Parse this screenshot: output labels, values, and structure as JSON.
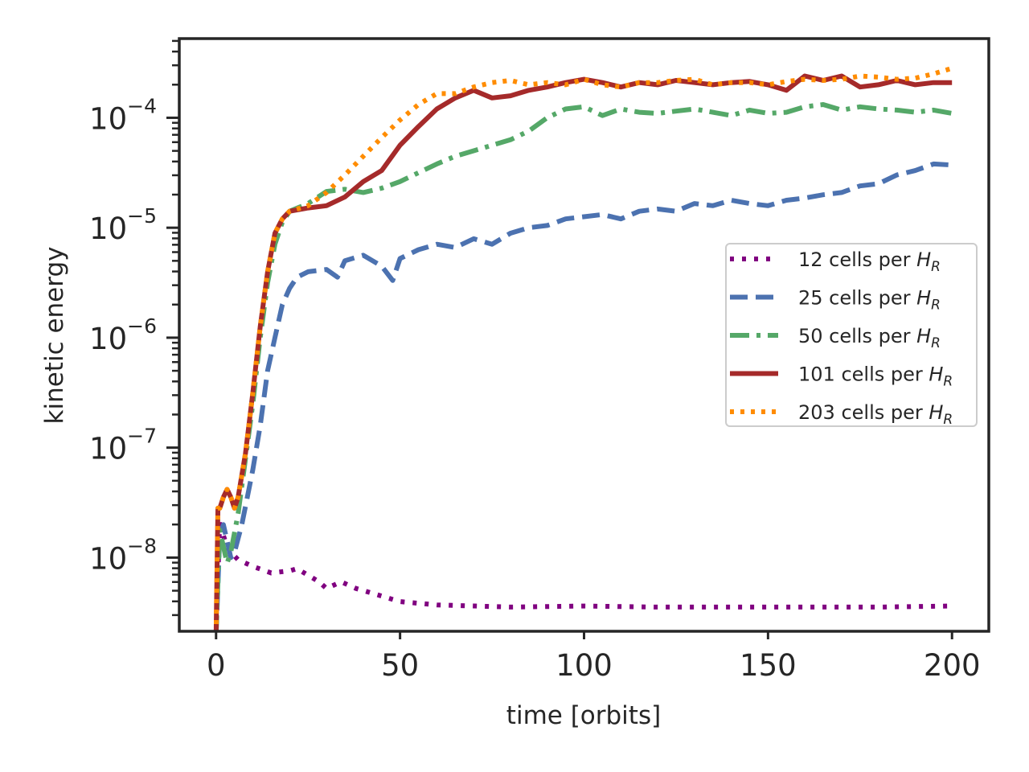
{
  "chart_data": {
    "type": "line",
    "title": "",
    "xlabel": "time [orbits]",
    "ylabel": "kinetic energy",
    "xlim": [
      -10,
      210
    ],
    "ylim_log10": [
      -8.67,
      -3.28
    ],
    "y_scale": "log",
    "grid": false,
    "legend_position": "center-right",
    "x_ticks": [
      0,
      50,
      100,
      150,
      200
    ],
    "x_tick_labels": [
      "0",
      "50",
      "100",
      "150",
      "200"
    ],
    "y_ticks_log10": [
      -8,
      -7,
      -6,
      -5,
      -4
    ],
    "y_tick_base": "10",
    "y_tick_exponents": [
      "−8",
      "−7",
      "−6",
      "−5",
      "−4"
    ],
    "series": [
      {
        "name": "12 cells per",
        "name_symbol": "H",
        "name_sub": "R",
        "color": "#800080",
        "style": "dotted-sparse",
        "points": [
          [
            0,
            -8.7
          ],
          [
            1,
            -7.65
          ],
          [
            2,
            -7.8
          ],
          [
            3,
            -7.9
          ],
          [
            4,
            -7.95
          ],
          [
            6,
            -8.02
          ],
          [
            10,
            -8.08
          ],
          [
            15,
            -8.14
          ],
          [
            20,
            -8.12
          ],
          [
            22,
            -8.1
          ],
          [
            25,
            -8.16
          ],
          [
            28,
            -8.22
          ],
          [
            30,
            -8.28
          ],
          [
            34,
            -8.22
          ],
          [
            38,
            -8.28
          ],
          [
            42,
            -8.32
          ],
          [
            50,
            -8.4
          ],
          [
            60,
            -8.43
          ],
          [
            80,
            -8.45
          ],
          [
            100,
            -8.44
          ],
          [
            120,
            -8.45
          ],
          [
            140,
            -8.45
          ],
          [
            160,
            -8.45
          ],
          [
            180,
            -8.45
          ],
          [
            200,
            -8.44
          ]
        ]
      },
      {
        "name": "25 cells per",
        "name_symbol": "H",
        "name_sub": "R",
        "color": "#4c72b0",
        "style": "dashed",
        "points": [
          [
            0,
            -8.7
          ],
          [
            1,
            -7.8
          ],
          [
            2,
            -7.7
          ],
          [
            3,
            -7.85
          ],
          [
            4,
            -8.0
          ],
          [
            5,
            -7.95
          ],
          [
            7,
            -7.7
          ],
          [
            10,
            -7.2
          ],
          [
            12,
            -6.8
          ],
          [
            14,
            -6.3
          ],
          [
            16,
            -6.0
          ],
          [
            18,
            -5.7
          ],
          [
            20,
            -5.55
          ],
          [
            22,
            -5.45
          ],
          [
            25,
            -5.4
          ],
          [
            30,
            -5.38
          ],
          [
            33,
            -5.45
          ],
          [
            35,
            -5.3
          ],
          [
            40,
            -5.25
          ],
          [
            45,
            -5.35
          ],
          [
            48,
            -5.48
          ],
          [
            50,
            -5.28
          ],
          [
            55,
            -5.2
          ],
          [
            60,
            -5.15
          ],
          [
            65,
            -5.18
          ],
          [
            70,
            -5.1
          ],
          [
            75,
            -5.15
          ],
          [
            80,
            -5.05
          ],
          [
            85,
            -5.0
          ],
          [
            90,
            -4.98
          ],
          [
            95,
            -4.92
          ],
          [
            100,
            -4.9
          ],
          [
            105,
            -4.88
          ],
          [
            110,
            -4.92
          ],
          [
            115,
            -4.85
          ],
          [
            120,
            -4.83
          ],
          [
            125,
            -4.85
          ],
          [
            130,
            -4.78
          ],
          [
            135,
            -4.8
          ],
          [
            140,
            -4.75
          ],
          [
            145,
            -4.78
          ],
          [
            150,
            -4.8
          ],
          [
            155,
            -4.75
          ],
          [
            160,
            -4.73
          ],
          [
            165,
            -4.7
          ],
          [
            170,
            -4.68
          ],
          [
            175,
            -4.62
          ],
          [
            180,
            -4.6
          ],
          [
            185,
            -4.52
          ],
          [
            190,
            -4.48
          ],
          [
            195,
            -4.42
          ],
          [
            200,
            -4.43
          ]
        ]
      },
      {
        "name": "50 cells per",
        "name_symbol": "H",
        "name_sub": "R",
        "color": "#55a868",
        "style": "dashdot",
        "points": [
          [
            0,
            -8.7
          ],
          [
            1,
            -7.75
          ],
          [
            2,
            -7.9
          ],
          [
            3,
            -8.05
          ],
          [
            4,
            -7.95
          ],
          [
            6,
            -7.6
          ],
          [
            8,
            -7.1
          ],
          [
            10,
            -6.6
          ],
          [
            12,
            -6.0
          ],
          [
            14,
            -5.5
          ],
          [
            16,
            -5.15
          ],
          [
            18,
            -4.95
          ],
          [
            20,
            -4.85
          ],
          [
            25,
            -4.78
          ],
          [
            30,
            -4.67
          ],
          [
            35,
            -4.65
          ],
          [
            40,
            -4.68
          ],
          [
            45,
            -4.64
          ],
          [
            50,
            -4.58
          ],
          [
            55,
            -4.5
          ],
          [
            60,
            -4.42
          ],
          [
            65,
            -4.35
          ],
          [
            70,
            -4.3
          ],
          [
            75,
            -4.25
          ],
          [
            80,
            -4.2
          ],
          [
            85,
            -4.12
          ],
          [
            90,
            -4.0
          ],
          [
            95,
            -3.92
          ],
          [
            100,
            -3.9
          ],
          [
            105,
            -3.98
          ],
          [
            110,
            -3.92
          ],
          [
            115,
            -3.95
          ],
          [
            120,
            -3.96
          ],
          [
            125,
            -3.94
          ],
          [
            130,
            -3.92
          ],
          [
            135,
            -3.95
          ],
          [
            140,
            -3.98
          ],
          [
            145,
            -3.93
          ],
          [
            150,
            -3.96
          ],
          [
            155,
            -3.95
          ],
          [
            160,
            -3.9
          ],
          [
            165,
            -3.88
          ],
          [
            170,
            -3.93
          ],
          [
            175,
            -3.9
          ],
          [
            180,
            -3.92
          ],
          [
            185,
            -3.93
          ],
          [
            190,
            -3.95
          ],
          [
            195,
            -3.93
          ],
          [
            200,
            -3.96
          ]
        ]
      },
      {
        "name": "101 cells per",
        "name_symbol": "H",
        "name_sub": "R",
        "color": "#a52a2a",
        "style": "solid",
        "points": [
          [
            0,
            -8.7
          ],
          [
            0.5,
            -7.55
          ],
          [
            1,
            -7.55
          ],
          [
            2,
            -7.45
          ],
          [
            3,
            -7.38
          ],
          [
            4,
            -7.45
          ],
          [
            5,
            -7.55
          ],
          [
            6,
            -7.45
          ],
          [
            8,
            -7.05
          ],
          [
            10,
            -6.5
          ],
          [
            12,
            -5.9
          ],
          [
            14,
            -5.4
          ],
          [
            16,
            -5.05
          ],
          [
            18,
            -4.92
          ],
          [
            20,
            -4.85
          ],
          [
            25,
            -4.82
          ],
          [
            30,
            -4.8
          ],
          [
            35,
            -4.72
          ],
          [
            40,
            -4.58
          ],
          [
            45,
            -4.48
          ],
          [
            50,
            -4.25
          ],
          [
            55,
            -4.08
          ],
          [
            60,
            -3.92
          ],
          [
            65,
            -3.82
          ],
          [
            70,
            -3.75
          ],
          [
            75,
            -3.82
          ],
          [
            80,
            -3.8
          ],
          [
            85,
            -3.75
          ],
          [
            90,
            -3.72
          ],
          [
            95,
            -3.68
          ],
          [
            100,
            -3.65
          ],
          [
            105,
            -3.68
          ],
          [
            110,
            -3.72
          ],
          [
            115,
            -3.68
          ],
          [
            120,
            -3.7
          ],
          [
            125,
            -3.66
          ],
          [
            130,
            -3.68
          ],
          [
            135,
            -3.7
          ],
          [
            140,
            -3.68
          ],
          [
            145,
            -3.67
          ],
          [
            150,
            -3.7
          ],
          [
            155,
            -3.75
          ],
          [
            160,
            -3.62
          ],
          [
            165,
            -3.66
          ],
          [
            170,
            -3.62
          ],
          [
            175,
            -3.72
          ],
          [
            180,
            -3.7
          ],
          [
            185,
            -3.66
          ],
          [
            190,
            -3.7
          ],
          [
            195,
            -3.68
          ],
          [
            200,
            -3.68
          ]
        ]
      },
      {
        "name": "203 cells per",
        "name_symbol": "H",
        "name_sub": "R",
        "color": "#ff8c00",
        "style": "dotted",
        "points": [
          [
            0,
            -8.7
          ],
          [
            0.5,
            -7.55
          ],
          [
            1,
            -7.55
          ],
          [
            2,
            -7.45
          ],
          [
            3,
            -7.38
          ],
          [
            4,
            -7.45
          ],
          [
            5,
            -7.55
          ],
          [
            6,
            -7.45
          ],
          [
            8,
            -7.05
          ],
          [
            10,
            -6.5
          ],
          [
            12,
            -5.9
          ],
          [
            14,
            -5.4
          ],
          [
            16,
            -5.05
          ],
          [
            18,
            -4.92
          ],
          [
            20,
            -4.85
          ],
          [
            25,
            -4.8
          ],
          [
            30,
            -4.68
          ],
          [
            35,
            -4.52
          ],
          [
            40,
            -4.35
          ],
          [
            45,
            -4.18
          ],
          [
            50,
            -4.02
          ],
          [
            55,
            -3.88
          ],
          [
            60,
            -3.78
          ],
          [
            65,
            -3.78
          ],
          [
            70,
            -3.72
          ],
          [
            75,
            -3.68
          ],
          [
            80,
            -3.66
          ],
          [
            85,
            -3.7
          ],
          [
            90,
            -3.68
          ],
          [
            95,
            -3.7
          ],
          [
            100,
            -3.65
          ],
          [
            105,
            -3.7
          ],
          [
            110,
            -3.72
          ],
          [
            115,
            -3.68
          ],
          [
            120,
            -3.68
          ],
          [
            125,
            -3.66
          ],
          [
            130,
            -3.65
          ],
          [
            135,
            -3.7
          ],
          [
            140,
            -3.68
          ],
          [
            145,
            -3.68
          ],
          [
            150,
            -3.7
          ],
          [
            155,
            -3.67
          ],
          [
            160,
            -3.65
          ],
          [
            165,
            -3.66
          ],
          [
            170,
            -3.65
          ],
          [
            175,
            -3.62
          ],
          [
            180,
            -3.63
          ],
          [
            185,
            -3.65
          ],
          [
            190,
            -3.64
          ],
          [
            195,
            -3.6
          ],
          [
            200,
            -3.55
          ]
        ]
      }
    ]
  }
}
